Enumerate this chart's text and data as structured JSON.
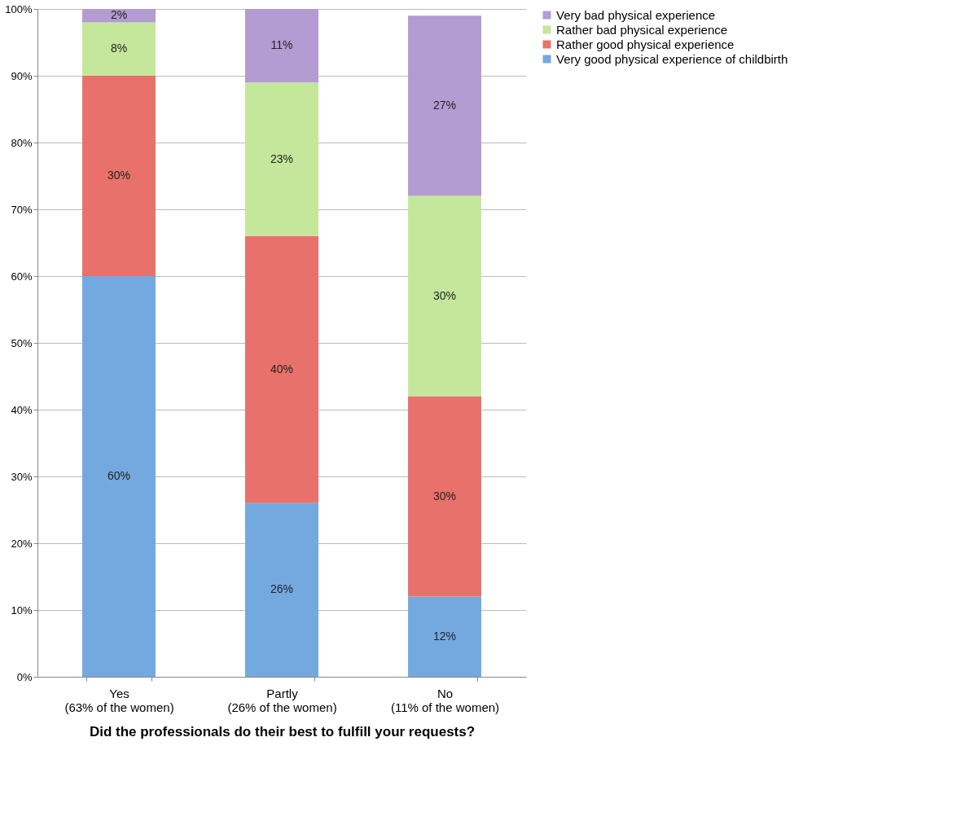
{
  "chart_data": {
    "type": "bar",
    "stacked": true,
    "xlabel": "Did the professionals do their best to fulfill your requests?",
    "categories": [
      "Yes\n(63% of the women)",
      "Partly\n(26% of the women)",
      "No\n(11% of the women)"
    ],
    "series": [
      {
        "name": "Very good physical experience of childbirth",
        "color": "#74a9e0",
        "values": [
          60,
          26,
          12
        ]
      },
      {
        "name": "Rather good physical experience",
        "color": "#e8726b",
        "values": [
          30,
          40,
          30
        ]
      },
      {
        "name": "Rather bad physical experience",
        "color": "#c5e79c",
        "values": [
          8,
          23,
          30
        ]
      },
      {
        "name": "Very bad physical experience",
        "color": "#b39cd2",
        "values": [
          2,
          11,
          27
        ]
      }
    ],
    "ylim": [
      0,
      100
    ],
    "yticks": [
      {
        "value": 0,
        "label": "0%"
      },
      {
        "value": 10,
        "label": "10%"
      },
      {
        "value": 20,
        "label": "20%"
      },
      {
        "value": 30,
        "label": "30%"
      },
      {
        "value": 40,
        "label": "40%"
      },
      {
        "value": 50,
        "label": "50%"
      },
      {
        "value": 60,
        "label": "60%"
      },
      {
        "value": 70,
        "label": "70%"
      },
      {
        "value": 80,
        "label": "80%"
      },
      {
        "value": 90,
        "label": "90%"
      },
      {
        "value": 100,
        "label": "100%"
      }
    ],
    "value_labels": [
      [
        "60%",
        "26%",
        "12%"
      ],
      [
        "30%",
        "40%",
        "30%"
      ],
      [
        "8%",
        "23%",
        "30%"
      ],
      [
        "2%",
        "11%",
        "27%"
      ]
    ],
    "grid": "y",
    "legend": "right"
  }
}
